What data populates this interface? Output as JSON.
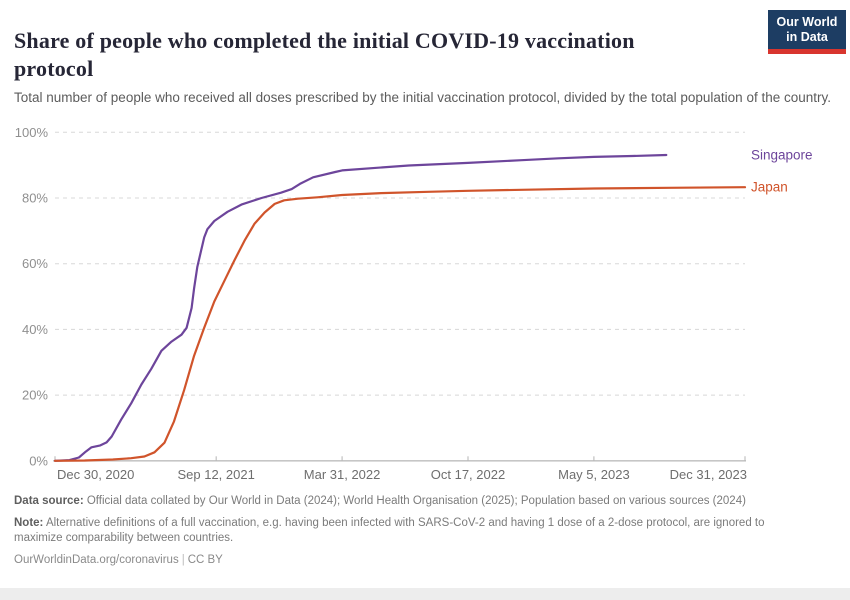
{
  "header": {
    "title": "Share of people who completed the initial COVID-19 vaccination protocol",
    "subtitle": "Total number of people who received all doses prescribed by the initial vaccination protocol, divided by the total population of the country.",
    "logo": {
      "line1": "Our World",
      "line2": "in Data",
      "bg_color": "#1D3D63",
      "accent_color": "#D8352E"
    }
  },
  "chart_data": {
    "type": "line",
    "title": "Share of people who completed the initial COVID-19 vaccination protocol",
    "grid": "horizontal-dashed",
    "legend_position": "right-of-line-ends",
    "x_axis": {
      "type": "date",
      "start": "2020-12-30",
      "end": "2023-12-31",
      "ticks": [
        {
          "date": "2020-12-30",
          "label": "Dec 30, 2020",
          "align": "start"
        },
        {
          "date": "2021-09-12",
          "label": "Sep 12, 2021",
          "align": "middle"
        },
        {
          "date": "2022-03-31",
          "label": "Mar 31, 2022",
          "align": "middle"
        },
        {
          "date": "2022-10-17",
          "label": "Oct 17, 2022",
          "align": "middle"
        },
        {
          "date": "2023-05-05",
          "label": "May 5, 2023",
          "align": "middle"
        },
        {
          "date": "2023-12-31",
          "label": "Dec 31, 2023",
          "align": "end"
        }
      ]
    },
    "y_axis": {
      "min": 0,
      "max": 100,
      "unit": "%",
      "ticks": [
        {
          "value": 0,
          "label": "0%"
        },
        {
          "value": 20,
          "label": "20%"
        },
        {
          "value": 40,
          "label": "40%"
        },
        {
          "value": 60,
          "label": "60%"
        },
        {
          "value": 80,
          "label": "80%"
        },
        {
          "value": 100,
          "label": "100%"
        }
      ]
    },
    "series": [
      {
        "name": "Singapore",
        "color": "#6D459B",
        "points": [
          [
            "2020-12-30",
            0
          ],
          [
            "2021-01-22",
            0.2
          ],
          [
            "2021-02-06",
            1
          ],
          [
            "2021-02-17",
            2.8
          ],
          [
            "2021-02-26",
            4.1
          ],
          [
            "2021-03-12",
            4.7
          ],
          [
            "2021-03-22",
            5.6
          ],
          [
            "2021-03-30",
            7.4
          ],
          [
            "2021-04-14",
            12.5
          ],
          [
            "2021-04-30",
            17.5
          ],
          [
            "2021-05-16",
            23.2
          ],
          [
            "2021-06-01",
            28
          ],
          [
            "2021-06-17",
            33.5
          ],
          [
            "2021-07-03",
            36.3
          ],
          [
            "2021-07-19",
            38.4
          ],
          [
            "2021-07-27",
            40.5
          ],
          [
            "2021-08-04",
            46.5
          ],
          [
            "2021-08-08",
            52.5
          ],
          [
            "2021-08-13",
            59
          ],
          [
            "2021-08-19",
            64
          ],
          [
            "2021-08-24",
            68
          ],
          [
            "2021-08-29",
            70.5
          ],
          [
            "2021-09-09",
            73
          ],
          [
            "2021-09-30",
            75.8
          ],
          [
            "2021-10-22",
            78
          ],
          [
            "2021-11-23",
            80
          ],
          [
            "2021-12-24",
            81.6
          ],
          [
            "2022-01-10",
            82.7
          ],
          [
            "2022-01-23",
            84.3
          ],
          [
            "2022-02-13",
            86.3
          ],
          [
            "2022-03-20",
            87.9
          ],
          [
            "2022-03-31",
            88.4
          ],
          [
            "2022-05-25",
            89.2
          ],
          [
            "2022-07-15",
            89.9
          ],
          [
            "2022-10-17",
            90.7
          ],
          [
            "2023-01-10",
            91.5
          ],
          [
            "2023-03-10",
            92.1
          ],
          [
            "2023-05-05",
            92.5
          ],
          [
            "2023-07-05",
            92.8
          ],
          [
            "2023-08-28",
            93.1
          ]
        ]
      },
      {
        "name": "Japan",
        "color": "#D0542B",
        "points": [
          [
            "2020-12-30",
            0
          ],
          [
            "2021-02-15",
            0.1
          ],
          [
            "2021-04-01",
            0.4
          ],
          [
            "2021-04-30",
            0.8
          ],
          [
            "2021-05-21",
            1.3
          ],
          [
            "2021-06-06",
            2.6
          ],
          [
            "2021-06-22",
            5.5
          ],
          [
            "2021-07-07",
            12
          ],
          [
            "2021-07-23",
            21.5
          ],
          [
            "2021-08-08",
            32
          ],
          [
            "2021-08-24",
            40.5
          ],
          [
            "2021-09-09",
            48.5
          ],
          [
            "2021-09-25",
            54.8
          ],
          [
            "2021-10-11",
            61
          ],
          [
            "2021-10-27",
            67
          ],
          [
            "2021-11-12",
            72.2
          ],
          [
            "2021-11-28",
            75.6
          ],
          [
            "2021-12-14",
            78.2
          ],
          [
            "2021-12-29",
            79.3
          ],
          [
            "2022-01-20",
            79.8
          ],
          [
            "2022-02-20",
            80.2
          ],
          [
            "2022-03-31",
            80.9
          ],
          [
            "2022-06-01",
            81.5
          ],
          [
            "2022-08-15",
            81.9
          ],
          [
            "2022-10-17",
            82.2
          ],
          [
            "2023-01-10",
            82.5
          ],
          [
            "2023-05-05",
            82.9
          ],
          [
            "2023-09-01",
            83.1
          ],
          [
            "2023-12-31",
            83.3
          ]
        ]
      }
    ],
    "colors": {
      "grid": "#d8d8d8",
      "axis": "#c6c6c6",
      "tick": "#b4b4b4",
      "y_label": "#8f8f8f",
      "x_label": "#6e6e6e"
    }
  },
  "footer": {
    "data_source_label": "Data source:",
    "data_source_text": " Official data collated by Our World in Data (2024); World Health Organisation (2025); Population based on various sources (2024)",
    "note_label": "Note:",
    "note_text": " Alternative definitions of a full vaccination, e.g. having been infected with SARS-CoV-2 and having 1 dose of a 2-dose protocol, are ignored to maximize comparability between countries.",
    "url": "OurWorldinData.org/coronavirus",
    "separator": "|",
    "license": "CC BY"
  }
}
